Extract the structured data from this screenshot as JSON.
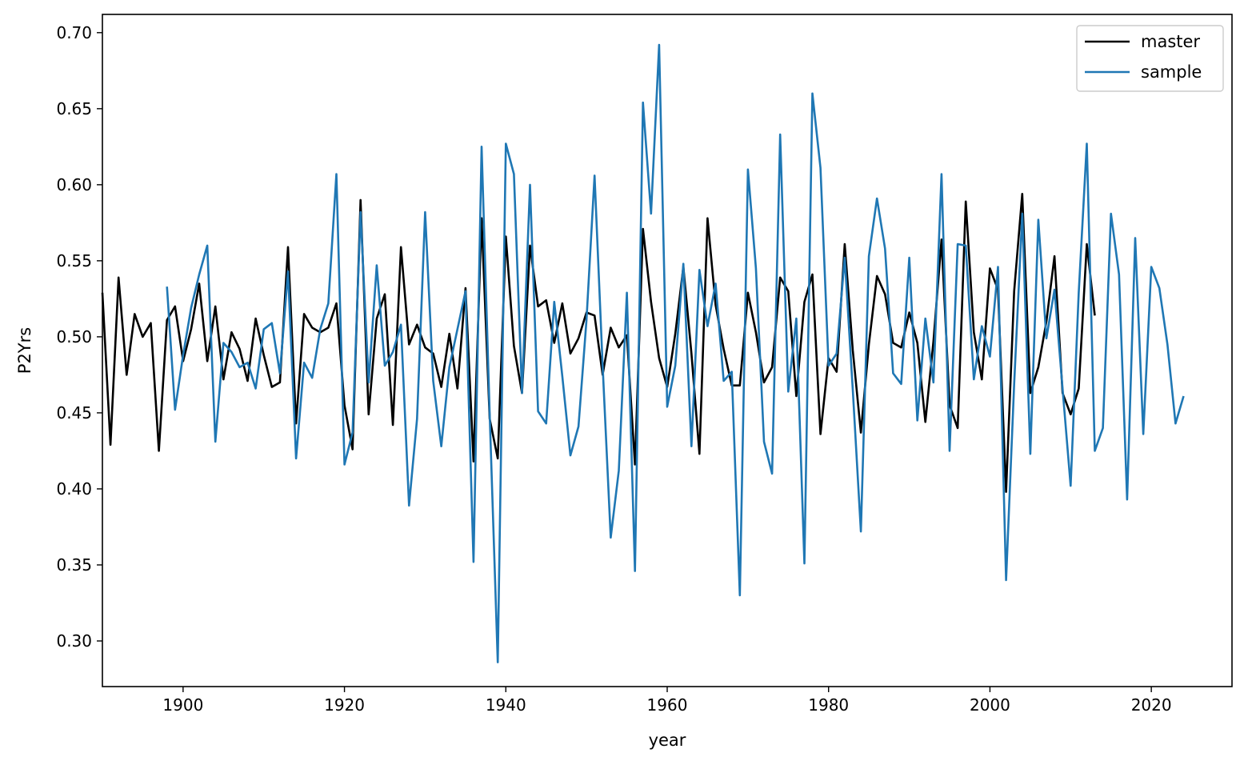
{
  "chart_data": {
    "type": "line",
    "xlabel": "year",
    "ylabel": "P2Yrs",
    "xlim": [
      1890,
      2030
    ],
    "ylim": [
      0.27,
      0.712
    ],
    "xticks": [
      1900,
      1920,
      1940,
      1960,
      1980,
      2000,
      2020
    ],
    "xtick_labels": [
      "1900",
      "1920",
      "1940",
      "1960",
      "1980",
      "2000",
      "2020"
    ],
    "yticks": [
      0.3,
      0.35,
      0.4,
      0.45,
      0.5,
      0.55,
      0.6,
      0.65,
      0.7
    ],
    "ytick_labels": [
      "0.30",
      "0.35",
      "0.40",
      "0.45",
      "0.50",
      "0.55",
      "0.60",
      "0.65",
      "0.70"
    ],
    "grid": false,
    "legend_position": "top-right",
    "series": [
      {
        "name": "master",
        "color": "#000000",
        "x": [
          1890,
          1891,
          1892,
          1893,
          1894,
          1895,
          1896,
          1897,
          1898,
          1899,
          1900,
          1901,
          1902,
          1903,
          1904,
          1905,
          1906,
          1907,
          1908,
          1909,
          1910,
          1911,
          1912,
          1913,
          1914,
          1915,
          1916,
          1917,
          1918,
          1919,
          1920,
          1921,
          1922,
          1923,
          1924,
          1925,
          1926,
          1927,
          1928,
          1929,
          1930,
          1931,
          1932,
          1933,
          1934,
          1935,
          1936,
          1937,
          1938,
          1939,
          1940,
          1941,
          1942,
          1943,
          1944,
          1945,
          1946,
          1947,
          1948,
          1949,
          1950,
          1951,
          1952,
          1953,
          1954,
          1955,
          1956,
          1957,
          1958,
          1959,
          1960,
          1961,
          1962,
          1963,
          1964,
          1965,
          1966,
          1967,
          1968,
          1969,
          1970,
          1971,
          1972,
          1973,
          1974,
          1975,
          1976,
          1977,
          1978,
          1979,
          1980,
          1981,
          1982,
          1983,
          1984,
          1985,
          1986,
          1987,
          1988,
          1989,
          1990,
          1991,
          1992,
          1993,
          1994,
          1995,
          1996,
          1997,
          1998,
          1999,
          2000,
          2001,
          2002,
          2003,
          2004,
          2005,
          2006,
          2007,
          2008,
          2009,
          2010,
          2011,
          2012,
          2013
        ],
        "y": [
          0.529,
          0.429,
          0.539,
          0.475,
          0.515,
          0.5,
          0.509,
          0.425,
          0.511,
          0.52,
          0.484,
          0.505,
          0.535,
          0.484,
          0.52,
          0.472,
          0.503,
          0.492,
          0.471,
          0.512,
          0.488,
          0.467,
          0.47,
          0.559,
          0.443,
          0.515,
          0.506,
          0.503,
          0.506,
          0.522,
          0.455,
          0.426,
          0.59,
          0.449,
          0.512,
          0.528,
          0.442,
          0.559,
          0.495,
          0.508,
          0.493,
          0.489,
          0.467,
          0.502,
          0.466,
          0.532,
          0.418,
          0.578,
          0.446,
          0.42,
          0.566,
          0.494,
          0.463,
          0.56,
          0.52,
          0.524,
          0.496,
          0.522,
          0.489,
          0.499,
          0.516,
          0.514,
          0.475,
          0.506,
          0.493,
          0.501,
          0.416,
          0.571,
          0.523,
          0.486,
          0.467,
          0.502,
          0.546,
          0.489,
          0.423,
          0.578,
          0.521,
          0.492,
          0.468,
          0.468,
          0.529,
          0.503,
          0.47,
          0.48,
          0.539,
          0.53,
          0.461,
          0.523,
          0.541,
          0.436,
          0.486,
          0.477,
          0.561,
          0.491,
          0.437,
          0.495,
          0.54,
          0.528,
          0.496,
          0.493,
          0.516,
          0.496,
          0.444,
          0.497,
          0.564,
          0.455,
          0.44,
          0.589,
          0.503,
          0.472,
          0.545,
          0.531,
          0.398,
          0.53,
          0.594,
          0.463,
          0.48,
          0.51,
          0.553,
          0.463,
          0.449,
          0.466,
          0.561,
          0.514
        ]
      },
      {
        "name": "sample",
        "color": "#1f77b4",
        "x": [
          1898,
          1899,
          1900,
          1901,
          1902,
          1903,
          1904,
          1905,
          1906,
          1907,
          1908,
          1909,
          1910,
          1911,
          1912,
          1913,
          1914,
          1915,
          1916,
          1917,
          1918,
          1919,
          1920,
          1921,
          1922,
          1923,
          1924,
          1925,
          1926,
          1927,
          1928,
          1929,
          1930,
          1931,
          1932,
          1933,
          1934,
          1935,
          1936,
          1937,
          1938,
          1939,
          1940,
          1941,
          1942,
          1943,
          1944,
          1945,
          1946,
          1947,
          1948,
          1949,
          1950,
          1951,
          1952,
          1953,
          1954,
          1955,
          1956,
          1957,
          1958,
          1959,
          1960,
          1961,
          1962,
          1963,
          1964,
          1965,
          1966,
          1967,
          1968,
          1969,
          1970,
          1971,
          1972,
          1973,
          1974,
          1975,
          1976,
          1977,
          1978,
          1979,
          1980,
          1981,
          1982,
          1983,
          1984,
          1985,
          1986,
          1987,
          1988,
          1989,
          1990,
          1991,
          1992,
          1993,
          1994,
          1995,
          1996,
          1997,
          1998,
          1999,
          2000,
          2001,
          2002,
          2003,
          2004,
          2005,
          2006,
          2007,
          2008,
          2009,
          2010,
          2011,
          2012,
          2013,
          2014,
          2015,
          2016,
          2017,
          2018,
          2019,
          2020,
          2021,
          2022,
          2023,
          2024
        ],
        "y": [
          0.533,
          0.452,
          0.488,
          0.519,
          0.541,
          0.56,
          0.431,
          0.496,
          0.49,
          0.48,
          0.483,
          0.466,
          0.505,
          0.509,
          0.476,
          0.543,
          0.42,
          0.483,
          0.473,
          0.505,
          0.522,
          0.607,
          0.416,
          0.437,
          0.582,
          0.47,
          0.547,
          0.481,
          0.49,
          0.508,
          0.389,
          0.446,
          0.582,
          0.471,
          0.428,
          0.48,
          0.505,
          0.53,
          0.352,
          0.625,
          0.449,
          0.286,
          0.627,
          0.607,
          0.463,
          0.6,
          0.451,
          0.443,
          0.523,
          0.474,
          0.422,
          0.441,
          0.511,
          0.606,
          0.481,
          0.368,
          0.412,
          0.529,
          0.346,
          0.654,
          0.581,
          0.692,
          0.454,
          0.481,
          0.548,
          0.428,
          0.544,
          0.507,
          0.535,
          0.471,
          0.477,
          0.33,
          0.61,
          0.545,
          0.431,
          0.41,
          0.633,
          0.464,
          0.512,
          0.351,
          0.66,
          0.611,
          0.481,
          0.489,
          0.552,
          0.465,
          0.372,
          0.553,
          0.591,
          0.558,
          0.476,
          0.469,
          0.552,
          0.445,
          0.512,
          0.47,
          0.607,
          0.425,
          0.561,
          0.56,
          0.472,
          0.507,
          0.487,
          0.546,
          0.34,
          0.469,
          0.581,
          0.423,
          0.577,
          0.499,
          0.531,
          0.466,
          0.402,
          0.529,
          0.627,
          0.425,
          0.44,
          0.581,
          0.541,
          0.393,
          0.565,
          0.436,
          0.546,
          0.532,
          0.495,
          0.443,
          0.461
        ]
      }
    ]
  }
}
